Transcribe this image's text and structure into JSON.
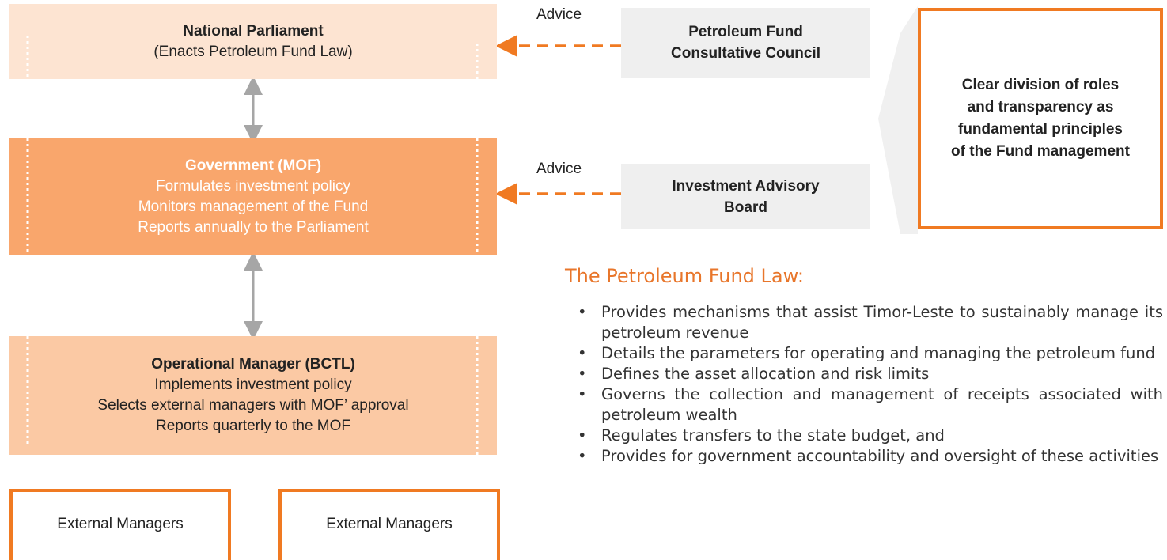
{
  "hierarchy": [
    {
      "title": "National Parliament",
      "lines": [
        "(Enacts Petroleum Fund Law)"
      ]
    },
    {
      "title": "Government (MOF)",
      "lines": [
        "Formulates investment policy",
        "Monitors management of the Fund",
        "Reports annually to the Parliament"
      ]
    },
    {
      "title": "Operational Manager (BCTL)",
      "lines": [
        "Implements investment policy",
        "Selects external managers with MOF’ approval",
        "Reports quarterly to the MOF"
      ]
    }
  ],
  "external_managers": [
    "External Managers",
    "External Managers"
  ],
  "advisors": [
    {
      "label": "Advice",
      "name": "Petroleum Fund Consultative Council"
    },
    {
      "label": "Advice",
      "name": "Investment Advisory Board"
    }
  ],
  "principle": "Clear division of roles and transparency as fundamental principles of the Fund management",
  "law": {
    "heading": "The Petroleum Fund Law:",
    "bullets": [
      "Provides mechanisms that assist Timor-Leste to sustainably manage its petroleum revenue",
      "Details the parameters for operating and managing the petroleum fund",
      "Defines the asset allocation and risk limits",
      "Governs the collection and management of receipts associated with petroleum wealth",
      "Regulates transfers to the state budget, and",
      "Provides for government accountability and oversight of these activities"
    ]
  }
}
